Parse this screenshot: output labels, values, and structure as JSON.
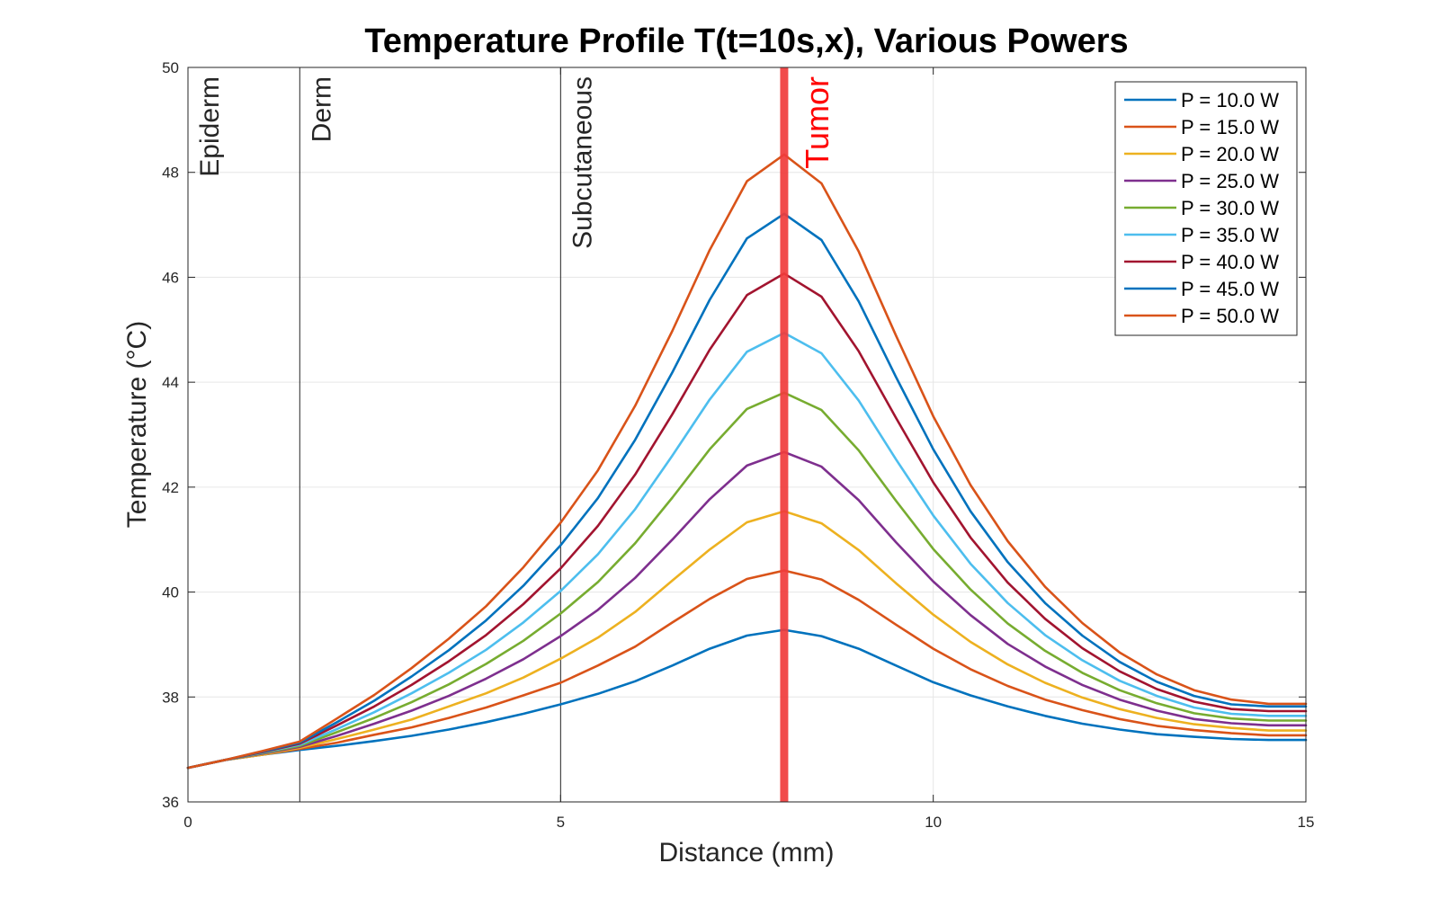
{
  "chart_data": {
    "type": "line",
    "title": "Temperature Profile T(t=10s,x), Various Powers",
    "xlabel": "Distance (mm)",
    "ylabel": "Temperature (°C)",
    "xlim": [
      0,
      15
    ],
    "ylim": [
      36,
      50
    ],
    "xticks": [
      "0",
      "5",
      "10",
      "15"
    ],
    "yticks": [
      "36",
      "38",
      "40",
      "42",
      "44",
      "46",
      "48",
      "50"
    ],
    "grid": true,
    "legend_position": "top-right",
    "x": [
      0,
      0.5,
      1,
      1.5,
      2,
      2.5,
      3,
      3.5,
      4,
      4.5,
      5,
      5.5,
      6,
      6.5,
      7,
      7.5,
      8,
      8.5,
      9,
      9.5,
      10,
      10.5,
      11,
      11.5,
      12,
      12.5,
      13,
      13.5,
      14,
      14.5,
      15
    ],
    "series": [
      {
        "name": "P = 10.0 W",
        "color": "#0072BD",
        "values": [
          36.65,
          36.8,
          36.9,
          36.99,
          37.07,
          37.16,
          37.26,
          37.38,
          37.52,
          37.68,
          37.86,
          38.06,
          38.3,
          38.6,
          38.92,
          39.17,
          39.28,
          39.16,
          38.92,
          38.6,
          38.28,
          38.03,
          37.82,
          37.64,
          37.49,
          37.38,
          37.29,
          37.24,
          37.2,
          37.18,
          37.18
        ]
      },
      {
        "name": "P = 15.0 W",
        "color": "#D95319",
        "values": [
          36.65,
          36.8,
          36.9,
          37.01,
          37.13,
          37.28,
          37.42,
          37.6,
          37.8,
          38.03,
          38.27,
          38.6,
          38.96,
          39.42,
          39.87,
          40.25,
          40.41,
          40.24,
          39.85,
          39.38,
          38.92,
          38.53,
          38.21,
          37.95,
          37.75,
          37.58,
          37.45,
          37.37,
          37.31,
          37.27,
          37.27
        ]
      },
      {
        "name": "P = 20.0 W",
        "color": "#EDB120",
        "values": [
          36.65,
          36.8,
          36.9,
          37.03,
          37.2,
          37.38,
          37.57,
          37.82,
          38.07,
          38.37,
          38.73,
          39.13,
          39.62,
          40.22,
          40.81,
          41.33,
          41.54,
          41.31,
          40.8,
          40.17,
          39.57,
          39.05,
          38.62,
          38.27,
          37.99,
          37.77,
          37.6,
          37.48,
          37.41,
          37.36,
          37.36
        ]
      },
      {
        "name": "P = 25.0 W",
        "color": "#7E2F8E",
        "values": [
          36.65,
          36.8,
          36.92,
          37.05,
          37.26,
          37.49,
          37.74,
          38.02,
          38.35,
          38.72,
          39.16,
          39.66,
          40.27,
          41.0,
          41.77,
          42.41,
          42.67,
          42.39,
          41.75,
          40.95,
          40.2,
          39.56,
          39.01,
          38.58,
          38.23,
          37.95,
          37.74,
          37.58,
          37.5,
          37.46,
          37.46
        ]
      },
      {
        "name": "P = 30.0 W",
        "color": "#77AC30",
        "values": [
          36.65,
          36.8,
          36.93,
          37.07,
          37.33,
          37.6,
          37.9,
          38.24,
          38.63,
          39.07,
          39.59,
          40.19,
          40.93,
          41.8,
          42.72,
          43.49,
          43.8,
          43.47,
          42.7,
          41.74,
          40.82,
          40.05,
          39.4,
          38.88,
          38.46,
          38.13,
          37.88,
          37.69,
          37.59,
          37.55,
          37.55
        ]
      },
      {
        "name": "P = 35.0 W",
        "color": "#4DBEEE",
        "values": [
          36.65,
          36.8,
          36.94,
          37.09,
          37.39,
          37.71,
          38.07,
          38.46,
          38.9,
          39.42,
          40.02,
          40.72,
          41.58,
          42.6,
          43.67,
          44.58,
          44.94,
          44.55,
          43.65,
          42.53,
          41.46,
          40.54,
          39.79,
          39.18,
          38.7,
          38.31,
          38.02,
          37.8,
          37.68,
          37.64,
          37.64
        ]
      },
      {
        "name": "P = 40.0 W",
        "color": "#A2142F",
        "values": [
          36.65,
          36.8,
          36.95,
          37.11,
          37.46,
          37.82,
          38.23,
          38.68,
          39.18,
          39.77,
          40.45,
          41.26,
          42.24,
          43.39,
          44.62,
          45.66,
          46.07,
          45.63,
          44.59,
          43.32,
          42.09,
          41.04,
          40.18,
          39.49,
          38.93,
          38.49,
          38.15,
          37.91,
          37.77,
          37.73,
          37.73
        ]
      },
      {
        "name": "P = 45.0 W",
        "color": "#0072BD",
        "values": [
          36.65,
          36.8,
          36.96,
          37.13,
          37.52,
          37.93,
          38.39,
          38.89,
          39.46,
          40.12,
          40.89,
          41.79,
          42.9,
          44.19,
          45.57,
          46.74,
          47.21,
          46.71,
          45.54,
          44.1,
          42.72,
          41.54,
          40.57,
          39.79,
          39.17,
          38.67,
          38.29,
          38.02,
          37.86,
          37.82,
          37.82
        ]
      },
      {
        "name": "P = 50.0 W",
        "color": "#D95319",
        "values": [
          36.65,
          36.8,
          36.97,
          37.15,
          37.59,
          38.04,
          38.55,
          39.11,
          39.73,
          40.47,
          41.32,
          42.32,
          43.55,
          44.98,
          46.52,
          47.83,
          48.34,
          47.79,
          46.49,
          44.89,
          43.35,
          42.04,
          40.97,
          40.1,
          39.41,
          38.85,
          38.43,
          38.13,
          37.95,
          37.87,
          37.87
        ]
      }
    ],
    "annotations": [
      {
        "text": "Epiderm",
        "x": 0,
        "kind": "region"
      },
      {
        "text": "Derm",
        "x": 1.5,
        "kind": "region"
      },
      {
        "text": "Subcutaneous",
        "x": 5,
        "kind": "region"
      },
      {
        "text": "Tumor",
        "x": 8,
        "kind": "tumor",
        "color": "#FF0000"
      }
    ],
    "colors": {
      "tumor_line": "#F03C3C",
      "tumor_text": "#FF0000",
      "axis": "#262626",
      "grid": "#E6E6E6"
    }
  }
}
